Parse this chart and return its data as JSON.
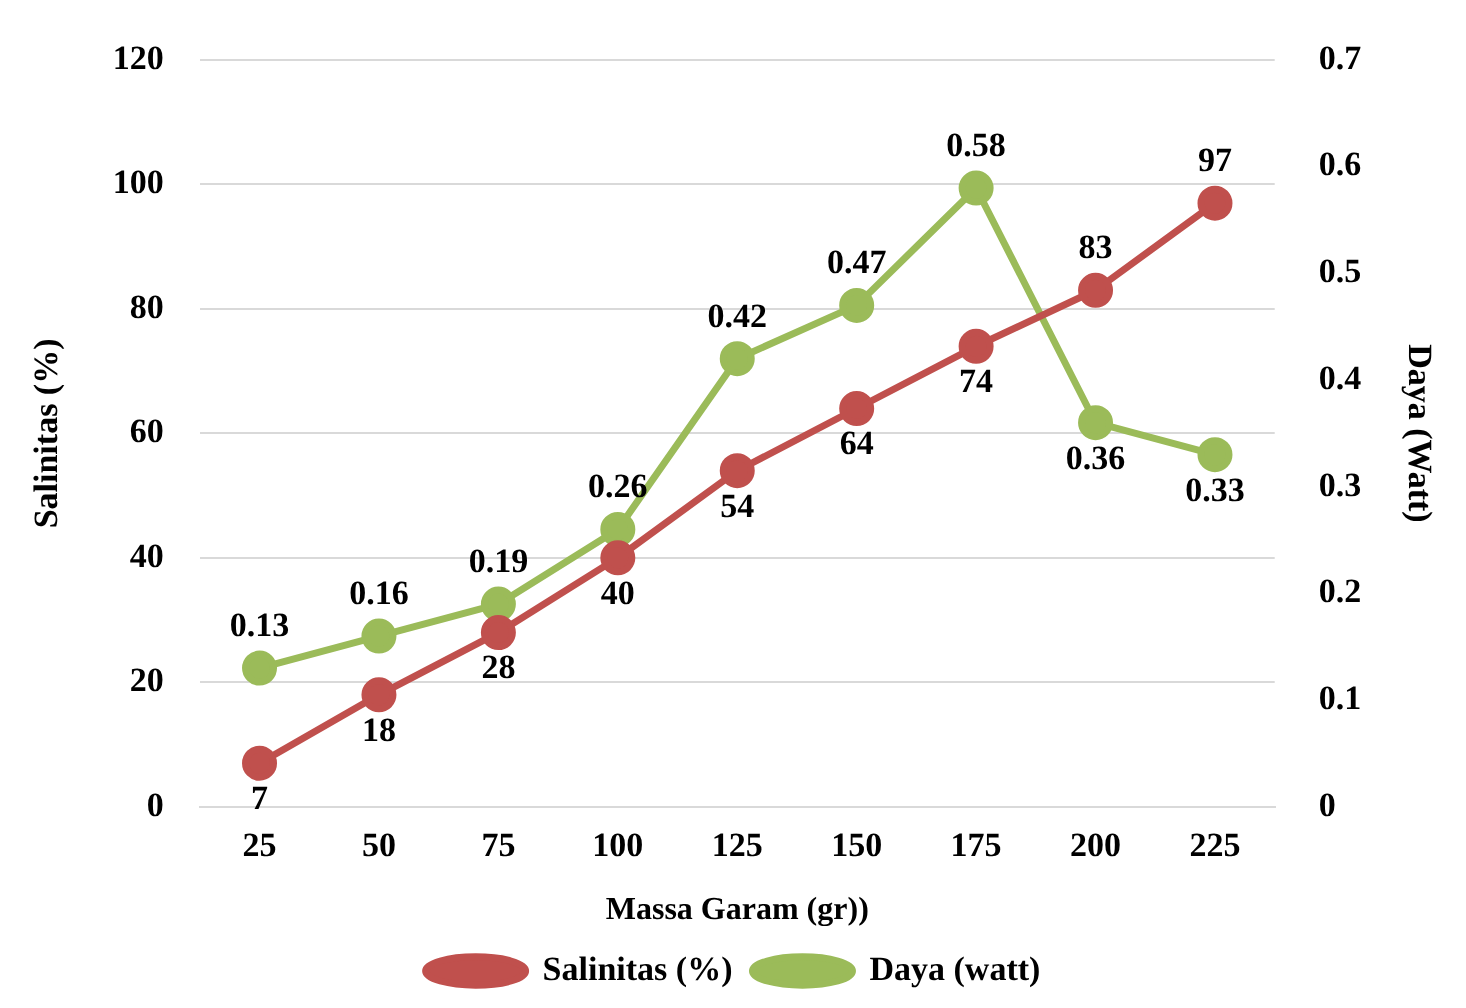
{
  "chart_data": {
    "type": "line",
    "xlabel": "Massa Garam (gr))",
    "ylabel": "Salinitas (%)",
    "y2label": "Daya (Watt)",
    "categories": [
      "25",
      "50",
      "75",
      "100",
      "125",
      "150",
      "175",
      "200",
      "225"
    ],
    "series": [
      {
        "name": "Salinitas (%)",
        "color": "#c0504d",
        "values": [
          7,
          18,
          28,
          40,
          54,
          64,
          74,
          83,
          97
        ]
      },
      {
        "name": "Daya (watt)",
        "color": "#9bbb59",
        "axis": "y2",
        "values": [
          0.13,
          0.16,
          0.19,
          0.26,
          0.42,
          0.47,
          0.58,
          0.36,
          0.33
        ]
      }
    ],
    "ylim": [
      0,
      120
    ],
    "yticks": [
      0,
      20,
      40,
      60,
      80,
      100,
      120
    ],
    "y2lim": [
      0,
      0.7
    ],
    "y2ticks": [
      0,
      0.1,
      0.2,
      0.3,
      0.4,
      0.5,
      0.6,
      0.7
    ],
    "grid": "y",
    "legend": "bottom",
    "marker": "circle",
    "line_style": "solid",
    "data_labels": true
  }
}
